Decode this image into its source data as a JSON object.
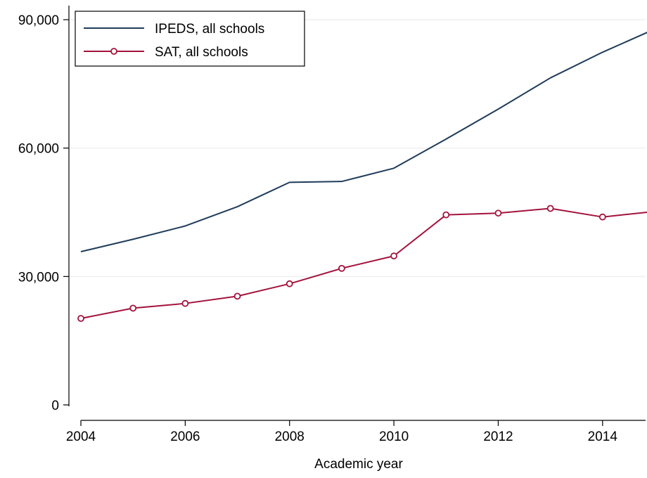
{
  "chart_data": {
    "type": "line",
    "title": "",
    "xlabel": "Academic year",
    "ylabel": "",
    "x": [
      2004,
      2005,
      2006,
      2007,
      2008,
      2009,
      2010,
      2011,
      2012,
      2013,
      2014,
      2015
    ],
    "xlim": [
      2004,
      2015
    ],
    "ylim": [
      0,
      90000
    ],
    "xticks": [
      2004,
      2006,
      2008,
      2010,
      2012,
      2014
    ],
    "yticks": [
      0,
      30000,
      60000,
      90000
    ],
    "xtick_labels": [
      "2004",
      "2006",
      "2008",
      "2010",
      "2012",
      "2014"
    ],
    "ytick_labels": [
      "0",
      "30,000",
      "60,000",
      "90,000"
    ],
    "grid": "horizontal",
    "legend_position": "top-left",
    "series": [
      {
        "name": "IPEDS, all schools",
        "color": "#1f3c5a",
        "marker": "none",
        "values": [
          35800,
          38700,
          41800,
          46300,
          52000,
          52200,
          55300,
          62100,
          69100,
          76400,
          82400,
          87800
        ]
      },
      {
        "name": "SAT, all schools",
        "color": "#a3133c",
        "marker": "hollow-circle",
        "values": [
          20200,
          22600,
          23700,
          25400,
          28300,
          31900,
          34800,
          44400,
          44800,
          45900,
          43900,
          45200
        ]
      }
    ]
  }
}
